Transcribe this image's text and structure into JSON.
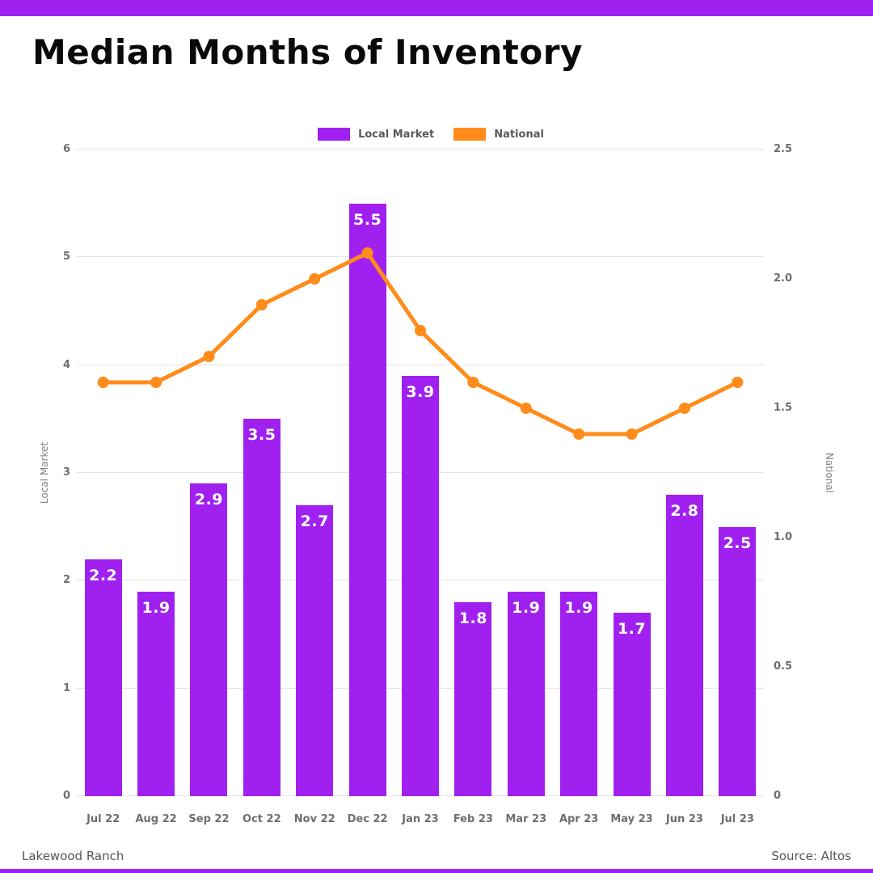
{
  "page": {
    "title": "Median Months of Inventory",
    "footer_left": "Lakewood Ranch",
    "footer_right": "Source: Altos"
  },
  "colors": {
    "local_market": "#a020f0",
    "national": "#ff8c1a",
    "accent_strip": "#a020f0",
    "grid": "#e4e4e4",
    "axis_text": "#6e6e6e"
  },
  "legend": {
    "items": [
      {
        "label": "Local Market",
        "color": "#a020f0"
      },
      {
        "label": "National",
        "color": "#ff8c1a"
      }
    ]
  },
  "chart_data": {
    "type": "bar+line",
    "title": "Median Months of Inventory",
    "categories": [
      "Jul 22",
      "Aug 22",
      "Sep 22",
      "Oct 22",
      "Nov 22",
      "Dec 22",
      "Jan 23",
      "Feb 23",
      "Mar 23",
      "Apr 23",
      "May 23",
      "Jun 23",
      "Jul 23"
    ],
    "series": [
      {
        "name": "Local Market",
        "type": "bar",
        "axis": "left",
        "color": "#a020f0",
        "values": [
          2.2,
          1.9,
          2.9,
          3.5,
          2.7,
          5.5,
          3.9,
          1.8,
          1.9,
          1.9,
          1.7,
          2.8,
          2.5
        ],
        "value_labels": [
          "2.2",
          "1.9",
          "2.9",
          "3.5",
          "2.7",
          "5.5",
          "3.9",
          "1.8",
          "1.9",
          "1.9",
          "1.7",
          "2.8",
          "2.5"
        ]
      },
      {
        "name": "National",
        "type": "line",
        "axis": "right",
        "color": "#ff8c1a",
        "values": [
          1.6,
          1.6,
          1.7,
          1.9,
          2.0,
          2.1,
          1.8,
          1.6,
          1.5,
          1.4,
          1.4,
          1.5,
          1.6
        ]
      }
    ],
    "left_axis": {
      "label": "Local Market",
      "min": 0,
      "max": 6,
      "tick_values": [
        0,
        1,
        2,
        3,
        4,
        5,
        6
      ],
      "tick_labels": [
        "0",
        "1",
        "2",
        "3",
        "4",
        "5",
        "6"
      ]
    },
    "right_axis": {
      "label": "National",
      "min": 0,
      "max": 2.5,
      "tick_values": [
        0,
        0.5,
        1,
        1.5,
        2,
        2.5
      ],
      "tick_labels": [
        "0",
        "0.5",
        "1.0",
        "1.5",
        "2.0",
        "2.5"
      ]
    },
    "legend_position": "top-center",
    "grid": "horizontal"
  }
}
